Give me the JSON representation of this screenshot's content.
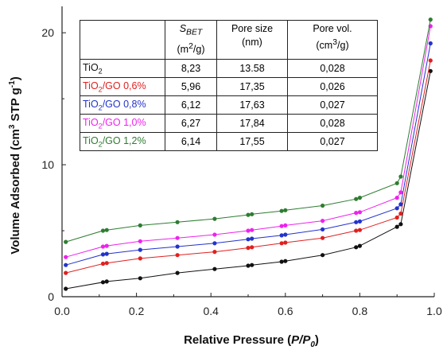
{
  "chart_data": {
    "type": "line",
    "xlabel_parts": [
      "Relative Pressure (",
      "P/P",
      "0",
      ")"
    ],
    "ylabel_parts": [
      "Volume Adsorbed (cm",
      "3",
      " STP g",
      "-1",
      ")"
    ],
    "xlim": [
      0.0,
      1.0
    ],
    "ylim": [
      0,
      22
    ],
    "x_ticks": [
      "0.0",
      "0.2",
      "0.4",
      "0.6",
      "0.8",
      "1.0"
    ],
    "y_ticks": [
      "0",
      "10",
      "20"
    ],
    "x": [
      0.01,
      0.11,
      0.12,
      0.21,
      0.31,
      0.41,
      0.5,
      0.51,
      0.59,
      0.6,
      0.7,
      0.79,
      0.8,
      0.9,
      0.91,
      0.99
    ],
    "series": [
      {
        "color": "#111111",
        "values": [
          0.6,
          1.1,
          1.15,
          1.4,
          1.8,
          2.1,
          2.35,
          2.4,
          2.65,
          2.7,
          3.15,
          3.75,
          3.85,
          5.3,
          5.5,
          17.1
        ]
      },
      {
        "color": "#e02020",
        "values": [
          1.8,
          2.5,
          2.55,
          2.9,
          3.15,
          3.4,
          3.7,
          3.75,
          4.05,
          4.1,
          4.45,
          5.0,
          5.05,
          6.0,
          6.3,
          17.9
        ]
      },
      {
        "color": "#2233cc",
        "values": [
          2.4,
          3.2,
          3.25,
          3.55,
          3.8,
          4.05,
          4.35,
          4.4,
          4.65,
          4.7,
          5.1,
          5.65,
          5.7,
          6.7,
          7.0,
          19.2
        ]
      },
      {
        "color": "#ee22ee",
        "values": [
          3.0,
          3.8,
          3.85,
          4.2,
          4.45,
          4.7,
          5.0,
          5.05,
          5.35,
          5.4,
          5.75,
          6.35,
          6.4,
          7.5,
          7.9,
          20.5
        ]
      },
      {
        "color": "#2e7d32",
        "values": [
          4.15,
          5.0,
          5.05,
          5.4,
          5.65,
          5.9,
          6.2,
          6.25,
          6.5,
          6.55,
          6.9,
          7.4,
          7.5,
          8.6,
          9.1,
          21.0
        ]
      }
    ]
  },
  "table": {
    "headers": {
      "sample": "",
      "sbet_label": "S",
      "sbet_sub": "BET",
      "sbet_unit": "(m",
      "sbet_unit_sup": "2",
      "sbet_unit_end": "/g)",
      "pore_size_label": "Pore size",
      "pore_size_unit": "(nm)",
      "pore_vol_label": "Pore vol.",
      "pore_vol_unit": "(cm",
      "pore_vol_unit_sup": "3",
      "pore_vol_unit_end": "/g)"
    },
    "rows": [
      {
        "base": "TiO",
        "sub": "2",
        "suffix": "",
        "color": "#111111",
        "sbet": "8,23",
        "pore_size": "13.58",
        "pore_vol": "0,028"
      },
      {
        "base": "TiO",
        "sub": "2",
        "suffix": "/GO 0,6%",
        "color": "#e02020",
        "sbet": "5,96",
        "pore_size": "17,35",
        "pore_vol": "0,026"
      },
      {
        "base": "TiO",
        "sub": "2",
        "suffix": "/GO 0,8%",
        "color": "#2233cc",
        "sbet": "6,12",
        "pore_size": "17,63",
        "pore_vol": "0,027"
      },
      {
        "base": "TiO",
        "sub": "2",
        "suffix": "/GO 1,0%",
        "color": "#ee22ee",
        "sbet": "6,27",
        "pore_size": "17,84",
        "pore_vol": "0,028"
      },
      {
        "base": "TiO",
        "sub": "2",
        "suffix": "/GO 1,2%",
        "color": "#2e7d32",
        "sbet": "6,14",
        "pore_size": "17,55",
        "pore_vol": "0,027"
      }
    ]
  }
}
